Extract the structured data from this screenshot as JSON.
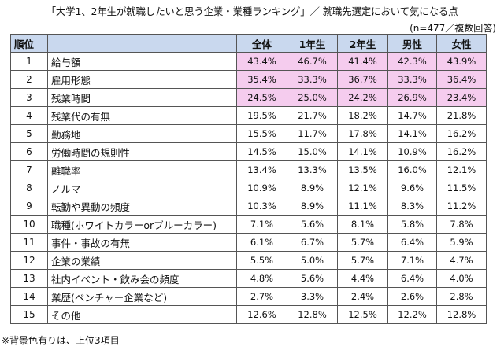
{
  "title": "「大学1、2年生が就職したいと思う企業・業種ランキング」／ 就職先選定において気になる点",
  "sample_note": "(n=477／複数回答)",
  "headers": {
    "rank": "順位",
    "item": "",
    "all": "全体",
    "year1": "1年生",
    "year2": "2年生",
    "male": "男性",
    "female": "女性"
  },
  "highlight_color": "#f5ccee",
  "header_color": "#c9d8ee",
  "rows": [
    {
      "rank": "1",
      "item": "給与額",
      "all": "43.4%",
      "year1": "46.7%",
      "year2": "41.4%",
      "male": "42.3%",
      "female": "43.9%",
      "highlight": true
    },
    {
      "rank": "2",
      "item": "雇用形態",
      "all": "35.4%",
      "year1": "33.3%",
      "year2": "36.7%",
      "male": "33.3%",
      "female": "36.4%",
      "highlight": true
    },
    {
      "rank": "3",
      "item": "残業時間",
      "all": "24.5%",
      "year1": "25.0%",
      "year2": "24.2%",
      "male": "26.9%",
      "female": "23.4%",
      "highlight": true
    },
    {
      "rank": "4",
      "item": "残業代の有無",
      "all": "19.5%",
      "year1": "21.7%",
      "year2": "18.2%",
      "male": "14.7%",
      "female": "21.8%",
      "highlight": false
    },
    {
      "rank": "5",
      "item": "勤務地",
      "all": "15.5%",
      "year1": "11.7%",
      "year2": "17.8%",
      "male": "14.1%",
      "female": "16.2%",
      "highlight": false
    },
    {
      "rank": "6",
      "item": "労働時間の規則性",
      "all": "14.5%",
      "year1": "15.0%",
      "year2": "14.1%",
      "male": "10.9%",
      "female": "16.2%",
      "highlight": false
    },
    {
      "rank": "7",
      "item": "離職率",
      "all": "13.4%",
      "year1": "13.3%",
      "year2": "13.5%",
      "male": "16.0%",
      "female": "12.1%",
      "highlight": false
    },
    {
      "rank": "8",
      "item": "ノルマ",
      "all": "10.9%",
      "year1": "8.9%",
      "year2": "12.1%",
      "male": "9.6%",
      "female": "11.5%",
      "highlight": false
    },
    {
      "rank": "9",
      "item": "転勤や異動の頻度",
      "all": "10.3%",
      "year1": "8.9%",
      "year2": "11.1%",
      "male": "8.3%",
      "female": "11.2%",
      "highlight": false
    },
    {
      "rank": "10",
      "item": "職種(ホワイトカラーorブルーカラー)",
      "all": "7.1%",
      "year1": "5.6%",
      "year2": "8.1%",
      "male": "5.8%",
      "female": "7.8%",
      "highlight": false
    },
    {
      "rank": "11",
      "item": "事件・事故の有無",
      "all": "6.1%",
      "year1": "6.7%",
      "year2": "5.7%",
      "male": "6.4%",
      "female": "5.9%",
      "highlight": false
    },
    {
      "rank": "12",
      "item": "企業の業績",
      "all": "5.5%",
      "year1": "5.0%",
      "year2": "5.7%",
      "male": "7.1%",
      "female": "4.7%",
      "highlight": false
    },
    {
      "rank": "13",
      "item": "社内イベント・飲み会の頻度",
      "all": "4.8%",
      "year1": "5.6%",
      "year2": "4.4%",
      "male": "6.4%",
      "female": "4.0%",
      "highlight": false
    },
    {
      "rank": "14",
      "item": "業歴(ベンチャー企業など)",
      "all": "2.7%",
      "year1": "3.3%",
      "year2": "2.4%",
      "male": "2.6%",
      "female": "2.8%",
      "highlight": false
    },
    {
      "rank": "15",
      "item": "その他",
      "all": "12.6%",
      "year1": "12.8%",
      "year2": "12.5%",
      "male": "12.2%",
      "female": "12.8%",
      "highlight": false
    }
  ],
  "footnote": "※背景色有りは、上位3項目"
}
